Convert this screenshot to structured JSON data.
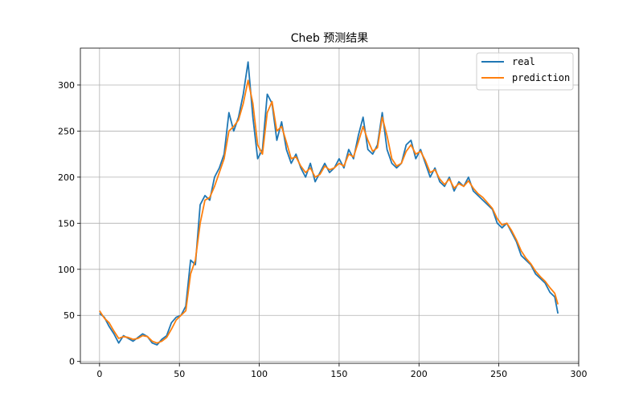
{
  "chart_data": {
    "type": "line",
    "title": "Cheb 预测结果",
    "xlabel": "",
    "ylabel": "",
    "xlim": [
      -12,
      300
    ],
    "ylim": [
      -2,
      340
    ],
    "xticks": [
      0,
      50,
      100,
      150,
      200,
      250,
      300
    ],
    "yticks": [
      0,
      50,
      100,
      150,
      200,
      250,
      300
    ],
    "grid": true,
    "legend_position": "top-right",
    "series": [
      {
        "name": "real",
        "color": "#1f77b4",
        "x": [
          0,
          3,
          6,
          9,
          12,
          15,
          18,
          21,
          24,
          27,
          30,
          33,
          36,
          39,
          42,
          45,
          48,
          51,
          54,
          57,
          60,
          63,
          66,
          69,
          72,
          75,
          78,
          81,
          84,
          87,
          90,
          93,
          96,
          99,
          102,
          105,
          108,
          111,
          114,
          117,
          120,
          123,
          126,
          129,
          132,
          135,
          138,
          141,
          144,
          147,
          150,
          153,
          156,
          159,
          162,
          165,
          168,
          171,
          174,
          177,
          180,
          183,
          186,
          189,
          192,
          195,
          198,
          201,
          204,
          207,
          210,
          213,
          216,
          219,
          222,
          225,
          228,
          231,
          234,
          237,
          240,
          243,
          246,
          249,
          252,
          255,
          258,
          261,
          264,
          267,
          270,
          273,
          276,
          279,
          282,
          285,
          287
        ],
        "y": [
          52,
          48,
          38,
          30,
          20,
          28,
          25,
          22,
          26,
          30,
          27,
          20,
          18,
          24,
          28,
          42,
          48,
          50,
          60,
          110,
          105,
          170,
          180,
          175,
          200,
          210,
          225,
          270,
          250,
          265,
          290,
          325,
          265,
          220,
          230,
          290,
          280,
          240,
          260,
          230,
          215,
          225,
          210,
          200,
          215,
          195,
          205,
          215,
          205,
          210,
          220,
          210,
          230,
          220,
          245,
          265,
          230,
          225,
          235,
          270,
          230,
          215,
          210,
          215,
          235,
          240,
          220,
          230,
          215,
          200,
          210,
          195,
          190,
          200,
          185,
          195,
          190,
          200,
          185,
          180,
          175,
          170,
          165,
          150,
          145,
          150,
          140,
          130,
          115,
          110,
          105,
          95,
          90,
          85,
          75,
          70,
          52
        ]
      },
      {
        "name": "prediction",
        "color": "#ff7f0e",
        "x": [
          0,
          3,
          6,
          9,
          12,
          15,
          18,
          21,
          24,
          27,
          30,
          33,
          36,
          39,
          42,
          45,
          48,
          51,
          54,
          57,
          60,
          63,
          66,
          69,
          72,
          75,
          78,
          81,
          84,
          87,
          90,
          93,
          96,
          99,
          102,
          105,
          108,
          111,
          114,
          117,
          120,
          123,
          126,
          129,
          132,
          135,
          138,
          141,
          144,
          147,
          150,
          153,
          156,
          159,
          162,
          165,
          168,
          171,
          174,
          177,
          180,
          183,
          186,
          189,
          192,
          195,
          198,
          201,
          204,
          207,
          210,
          213,
          216,
          219,
          222,
          225,
          228,
          231,
          234,
          237,
          240,
          243,
          246,
          249,
          252,
          255,
          258,
          261,
          264,
          267,
          270,
          273,
          276,
          279,
          282,
          285,
          287
        ],
        "y": [
          55,
          47,
          42,
          33,
          25,
          27,
          26,
          24,
          25,
          28,
          27,
          22,
          20,
          22,
          26,
          35,
          45,
          50,
          55,
          95,
          110,
          150,
          175,
          178,
          190,
          205,
          220,
          250,
          255,
          262,
          280,
          305,
          280,
          235,
          225,
          270,
          282,
          250,
          255,
          238,
          220,
          222,
          212,
          205,
          210,
          200,
          203,
          212,
          208,
          210,
          215,
          212,
          225,
          222,
          238,
          255,
          240,
          228,
          232,
          265,
          245,
          220,
          212,
          215,
          228,
          235,
          225,
          228,
          218,
          205,
          208,
          198,
          192,
          198,
          188,
          193,
          190,
          196,
          188,
          182,
          178,
          172,
          166,
          155,
          148,
          150,
          142,
          132,
          120,
          112,
          106,
          98,
          92,
          87,
          80,
          74,
          62
        ]
      }
    ]
  }
}
